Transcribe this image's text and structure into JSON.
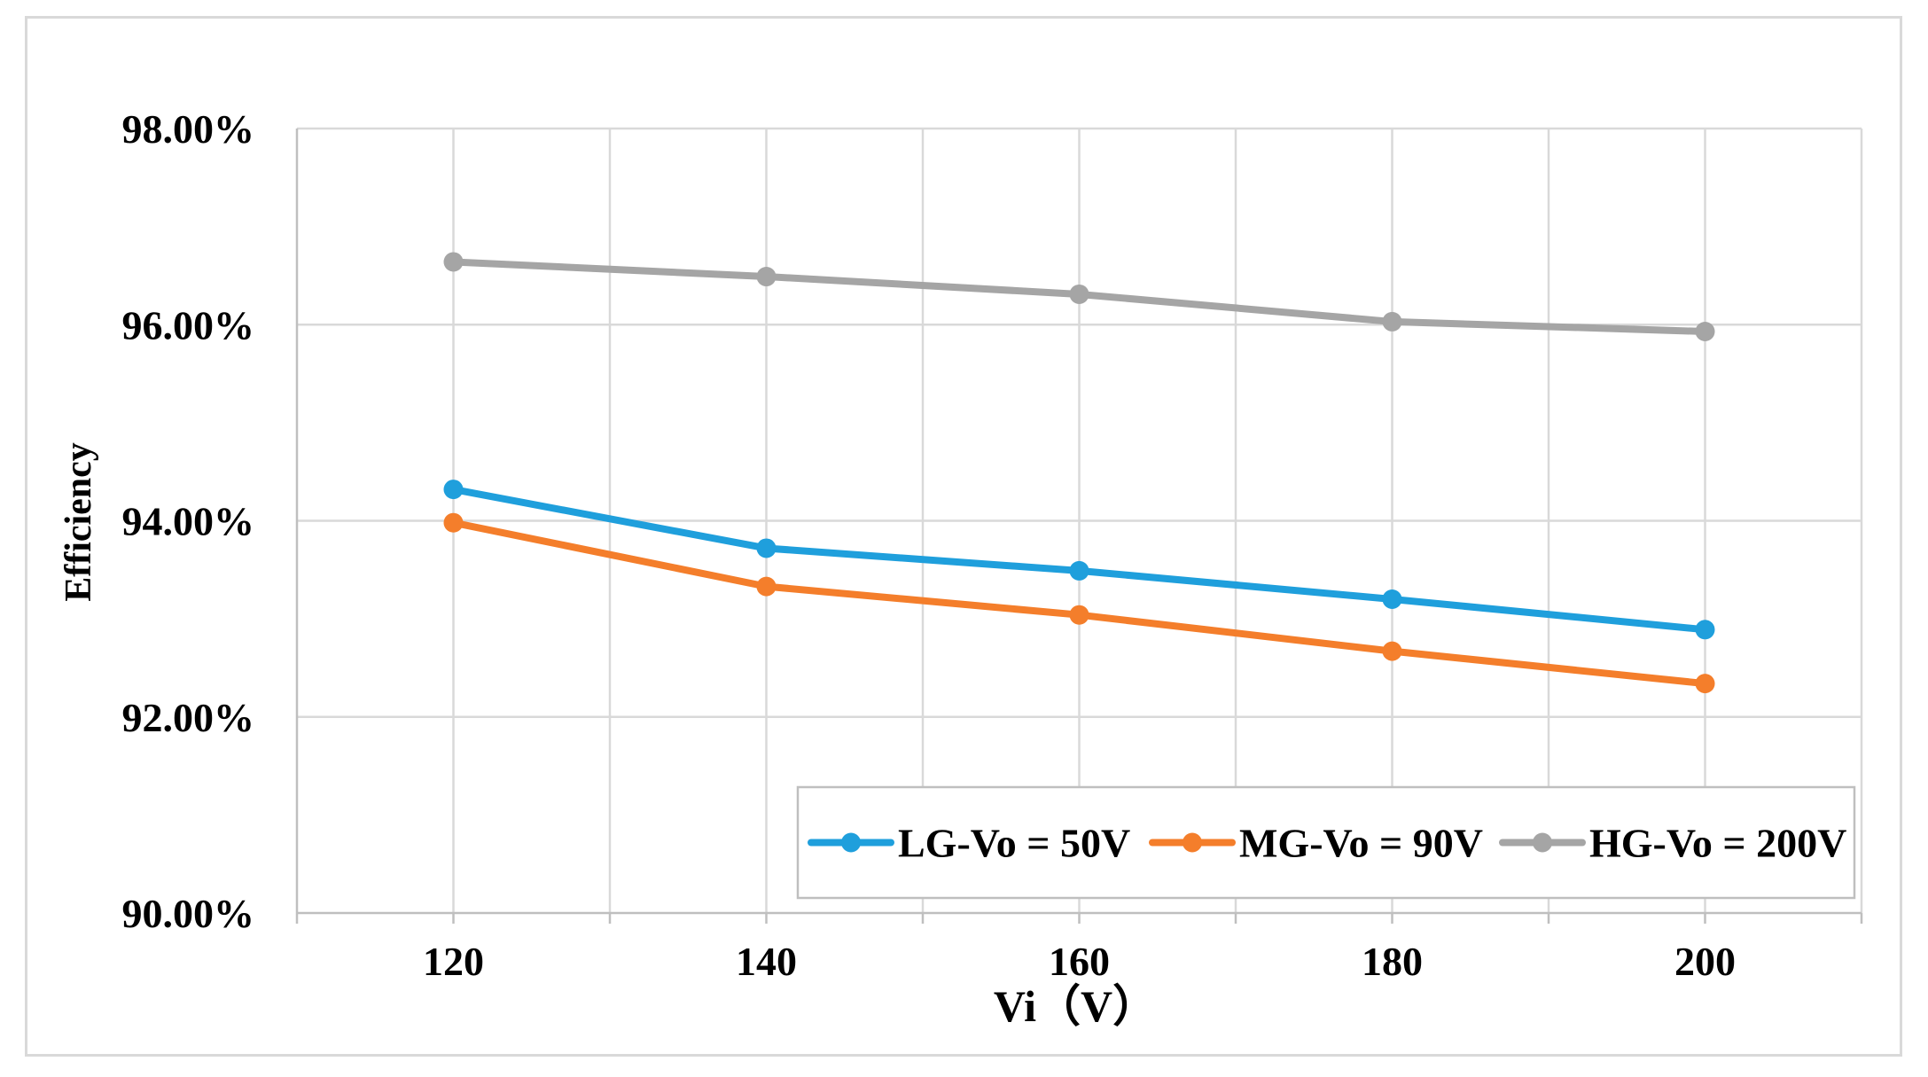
{
  "chart_data": {
    "type": "line",
    "title": "",
    "xlabel": "Vi（V）",
    "ylabel": "Efficiency",
    "x": [
      120,
      140,
      160,
      180,
      200
    ],
    "x_tick_labels": [
      "120",
      "140",
      "160",
      "180",
      "200"
    ],
    "xlim": [
      110,
      210
    ],
    "ylim": [
      90,
      98
    ],
    "y_ticks": [
      90,
      92,
      94,
      96,
      98
    ],
    "y_tick_labels": [
      "90.00%",
      "92.00%",
      "94.00%",
      "96.00%",
      "98.00%"
    ],
    "grid": true,
    "legend_position": "bottom-right",
    "series": [
      {
        "name": "LG-Vo = 50V",
        "color": "#1f9fdc",
        "values": [
          94.32,
          93.72,
          93.49,
          93.2,
          92.89
        ]
      },
      {
        "name": "MG-Vo = 90V",
        "color": "#f47e2b",
        "values": [
          93.98,
          93.33,
          93.04,
          92.67,
          92.34
        ]
      },
      {
        "name": "HG-Vo = 200V",
        "color": "#a5a5a5",
        "values": [
          96.64,
          96.49,
          96.31,
          96.03,
          95.93
        ]
      }
    ]
  }
}
